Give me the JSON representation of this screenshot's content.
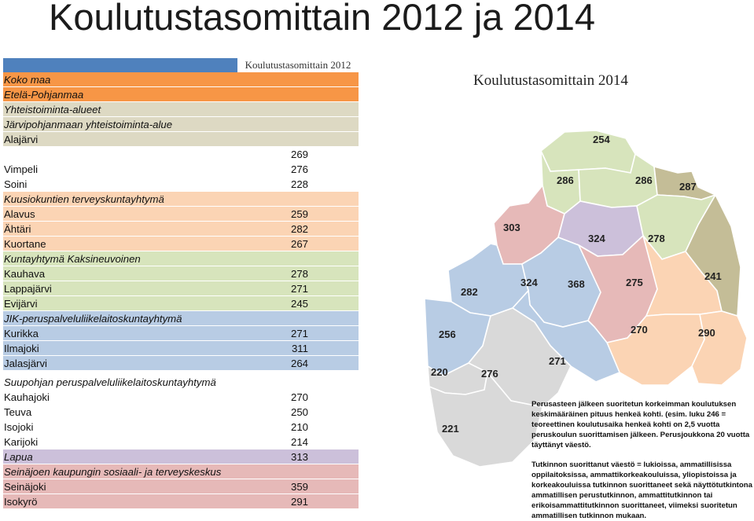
{
  "page": {
    "title": "Koulutustasomittain 2012 ja 2014"
  },
  "table": {
    "header": "Koulutustasomittain 2012",
    "rows": [
      {
        "name": "Koko maa",
        "value": "",
        "style": "orange",
        "italic": true
      },
      {
        "name": "Etelä-Pohjanmaa",
        "value": "",
        "style": "orange",
        "italic": true
      },
      {
        "name": "Yhteistoiminta-alueet",
        "value": "",
        "style": "tan",
        "italic": true
      },
      {
        "name": "Järvipohjanmaan yhteistoiminta-alue",
        "value": "",
        "style": "tan",
        "italic": true
      },
      {
        "name": "Alajärvi",
        "value": "",
        "style": "tan",
        "italic": false
      },
      {
        "name": "",
        "value": "269",
        "style": "white",
        "italic": false
      },
      {
        "name": "Vimpeli",
        "value": "276",
        "style": "white",
        "italic": false
      },
      {
        "name": "Soini",
        "value": "228",
        "style": "white",
        "italic": false
      },
      {
        "name": "Kuusiokuntien terveyskuntayhtymä",
        "value": "",
        "style": "pink",
        "italic": true
      },
      {
        "name": "Alavus",
        "value": "259",
        "style": "pink",
        "italic": false
      },
      {
        "name": "Ähtäri",
        "value": "282",
        "style": "pink",
        "italic": false
      },
      {
        "name": "Kuortane",
        "value": "267",
        "style": "pink",
        "italic": false
      },
      {
        "name": "Kuntayhtymä Kaksineuvoinen",
        "value": "",
        "style": "green",
        "italic": true
      },
      {
        "name": "Kauhava",
        "value": "278",
        "style": "green",
        "italic": false
      },
      {
        "name": "Lappajärvi",
        "value": "271",
        "style": "green",
        "italic": false
      },
      {
        "name": "Evijärvi",
        "value": "245",
        "style": "green",
        "italic": false
      },
      {
        "name": "JIK-peruspalveluliikelaitoskuntayhtymä",
        "value": "",
        "style": "blue",
        "italic": true
      },
      {
        "name": "Kurikka",
        "value": "271",
        "style": "blue",
        "italic": false
      },
      {
        "name": "Ilmajoki",
        "value": "311",
        "style": "blue",
        "italic": false
      },
      {
        "name": "Jalasjärvi",
        "value": "264",
        "style": "blue",
        "italic": false
      },
      {
        "name": "Suupohjan peruspalveluliikelaitoskuntayhtymä",
        "value": "",
        "style": "white",
        "italic": true,
        "tall": true
      },
      {
        "name": "Kauhajoki",
        "value": "270",
        "style": "white",
        "italic": false
      },
      {
        "name": "Teuva",
        "value": "250",
        "style": "white",
        "italic": false
      },
      {
        "name": "Isojoki",
        "value": "210",
        "style": "white",
        "italic": false
      },
      {
        "name": "Karijoki",
        "value": "214",
        "style": "white",
        "italic": false
      },
      {
        "name": "Lapua",
        "value": "313",
        "style": "lilac",
        "italic": true
      },
      {
        "name": "Seinäjoen kaupungin sosiaali- ja terveyskeskus",
        "value": "",
        "style": "rose",
        "italic": true
      },
      {
        "name": "Seinäjoki",
        "value": "359",
        "style": "rose",
        "italic": false
      },
      {
        "name": "Isokyrö",
        "value": "291",
        "style": "rose",
        "italic": false
      }
    ]
  },
  "map": {
    "title": "Koulutustasomittain 2014",
    "regions": [
      {
        "value": "254",
        "color": "#d7e4bc"
      },
      {
        "value": "286",
        "color": "#d7e4bc"
      },
      {
        "value": "286",
        "color": "#d7e4bc"
      },
      {
        "value": "287",
        "color": "#c4bd97"
      },
      {
        "value": "303",
        "color": "#e6b9b8"
      },
      {
        "value": "324",
        "color": "#ccc0da"
      },
      {
        "value": "278",
        "color": "#d7e4bc"
      },
      {
        "value": "282",
        "color": "#b8cce4"
      },
      {
        "value": "324",
        "color": "#b8cce4"
      },
      {
        "value": "368",
        "color": "#e6b9b8"
      },
      {
        "value": "275",
        "color": "#fbd4b4"
      },
      {
        "value": "241",
        "color": "#c4bd97"
      },
      {
        "value": "256",
        "color": "#b8cce4"
      },
      {
        "value": "270",
        "color": "#fbd4b4"
      },
      {
        "value": "290",
        "color": "#fbd4b4"
      },
      {
        "value": "271",
        "color": "#b8cce4"
      },
      {
        "value": "220",
        "color": "#d9d9d9"
      },
      {
        "value": "276",
        "color": "#d9d9d9"
      },
      {
        "value": "221",
        "color": "#d9d9d9"
      }
    ]
  },
  "notes": {
    "note1": "Perusasteen jälkeen suoritetun korkeimman koulutuksen keskimääräinen pituus henkeä kohti. (esim. luku 246 = teoreettinen koulutusaika henkeä kohti on 2,5 vuotta peruskoulun suorittamisen jälkeen. Perusjoukkona 20 vuotta täyttänyt väestö.",
    "note2": "Tutkinnon suorittanut väestö = lukioissa, ammatillisissa oppilaitoksissa, ammattikorkeakouluissa, yliopistoissa ja korkeakouluissa tutkinnon suorittaneet sekä näyttötutkintona ammatillisen perustutkinnon, ammattitutkinnon tai erikoisammattitutkinnon suorittaneet, viimeksi suoritetun ammatillisen tutkinnon mukaan."
  }
}
